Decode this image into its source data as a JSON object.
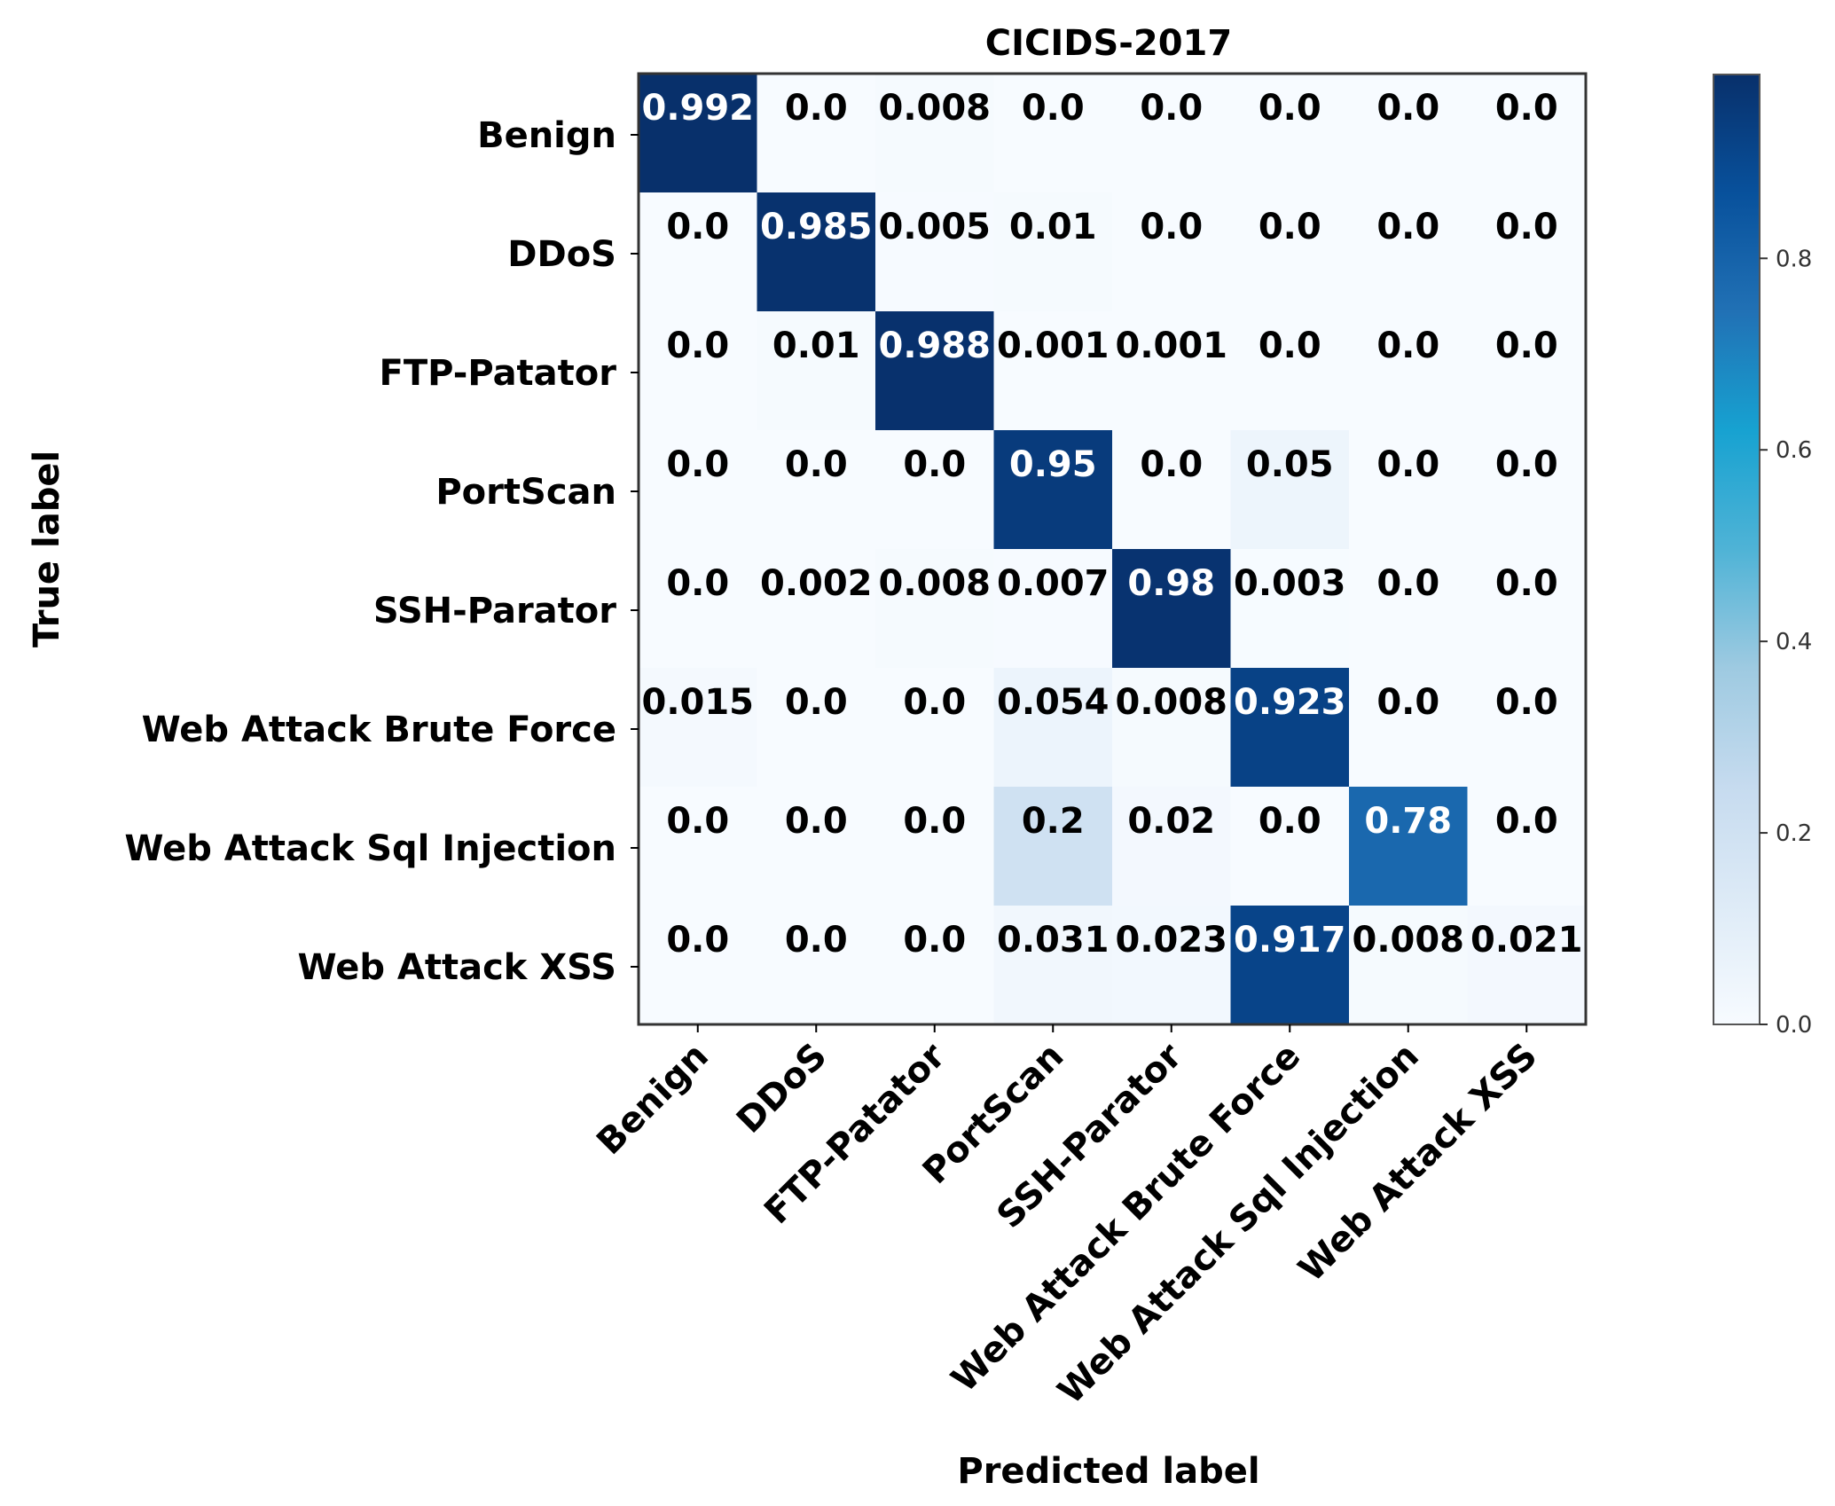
{
  "chart_data": {
    "type": "heatmap",
    "title": "CICIDS-2017",
    "xlabel": "Predicted label",
    "ylabel": "True label",
    "x_categories": [
      "Benign",
      "DDoS",
      "FTP-Patator",
      "PortScan",
      "SSH-Parator",
      "Web Attack Brute Force",
      "Web Attack Sql Injection",
      "Web Attack XSS"
    ],
    "y_categories": [
      "Benign",
      "DDoS",
      "FTP-Patator",
      "PortScan",
      "SSH-Parator",
      "Web Attack Brute Force",
      "Web Attack Sql Injection",
      "Web Attack XSS"
    ],
    "values": [
      [
        0.992,
        0.0,
        0.008,
        0.0,
        0.0,
        0.0,
        0.0,
        0.0
      ],
      [
        0.0,
        0.985,
        0.005,
        0.01,
        0.0,
        0.0,
        0.0,
        0.0
      ],
      [
        0.0,
        0.01,
        0.988,
        0.001,
        0.001,
        0.0,
        0.0,
        0.0
      ],
      [
        0.0,
        0.0,
        0.0,
        0.95,
        0.0,
        0.05,
        0.0,
        0.0
      ],
      [
        0.0,
        0.002,
        0.008,
        0.007,
        0.98,
        0.003,
        0.0,
        0.0
      ],
      [
        0.015,
        0.0,
        0.0,
        0.054,
        0.008,
        0.923,
        0.0,
        0.0
      ],
      [
        0.0,
        0.0,
        0.0,
        0.2,
        0.02,
        0.0,
        0.78,
        0.0
      ],
      [
        0.0,
        0.0,
        0.0,
        0.031,
        0.023,
        0.917,
        0.008,
        0.021
      ]
    ],
    "cell_labels": [
      [
        "0.992",
        "0.0",
        "0.008",
        "0.0",
        "0.0",
        "0.0",
        "0.0",
        "0.0"
      ],
      [
        "0.0",
        "0.985",
        "0.005",
        "0.01",
        "0.0",
        "0.0",
        "0.0",
        "0.0"
      ],
      [
        "0.0",
        "0.01",
        "0.988",
        "0.001",
        "0.001",
        "0.0",
        "0.0",
        "0.0"
      ],
      [
        "0.0",
        "0.0",
        "0.0",
        "0.95",
        "0.0",
        "0.05",
        "0.0",
        "0.0"
      ],
      [
        "0.0",
        "0.002",
        "0.008",
        "0.007",
        "0.98",
        "0.003",
        "0.0",
        "0.0"
      ],
      [
        "0.015",
        "0.0",
        "0.0",
        "0.054",
        "0.008",
        "0.923",
        "0.0",
        "0.0"
      ],
      [
        "0.0",
        "0.0",
        "0.0",
        "0.2",
        "0.02",
        "0.0",
        "0.78",
        "0.0"
      ],
      [
        "0.0",
        "0.0",
        "0.0",
        "0.031",
        "0.023",
        "0.917",
        "0.008",
        "0.021"
      ]
    ],
    "colormap": "Blues",
    "vmin": 0.0,
    "vmax": 0.992,
    "colorbar_ticks": [
      0.0,
      0.2,
      0.4,
      0.6,
      0.8
    ],
    "colorbar_tick_labels": [
      "0.0",
      "0.2",
      "0.4",
      "0.6",
      "0.8"
    ],
    "text_color_dark": "#000000",
    "text_color_light": "#ffffff"
  }
}
